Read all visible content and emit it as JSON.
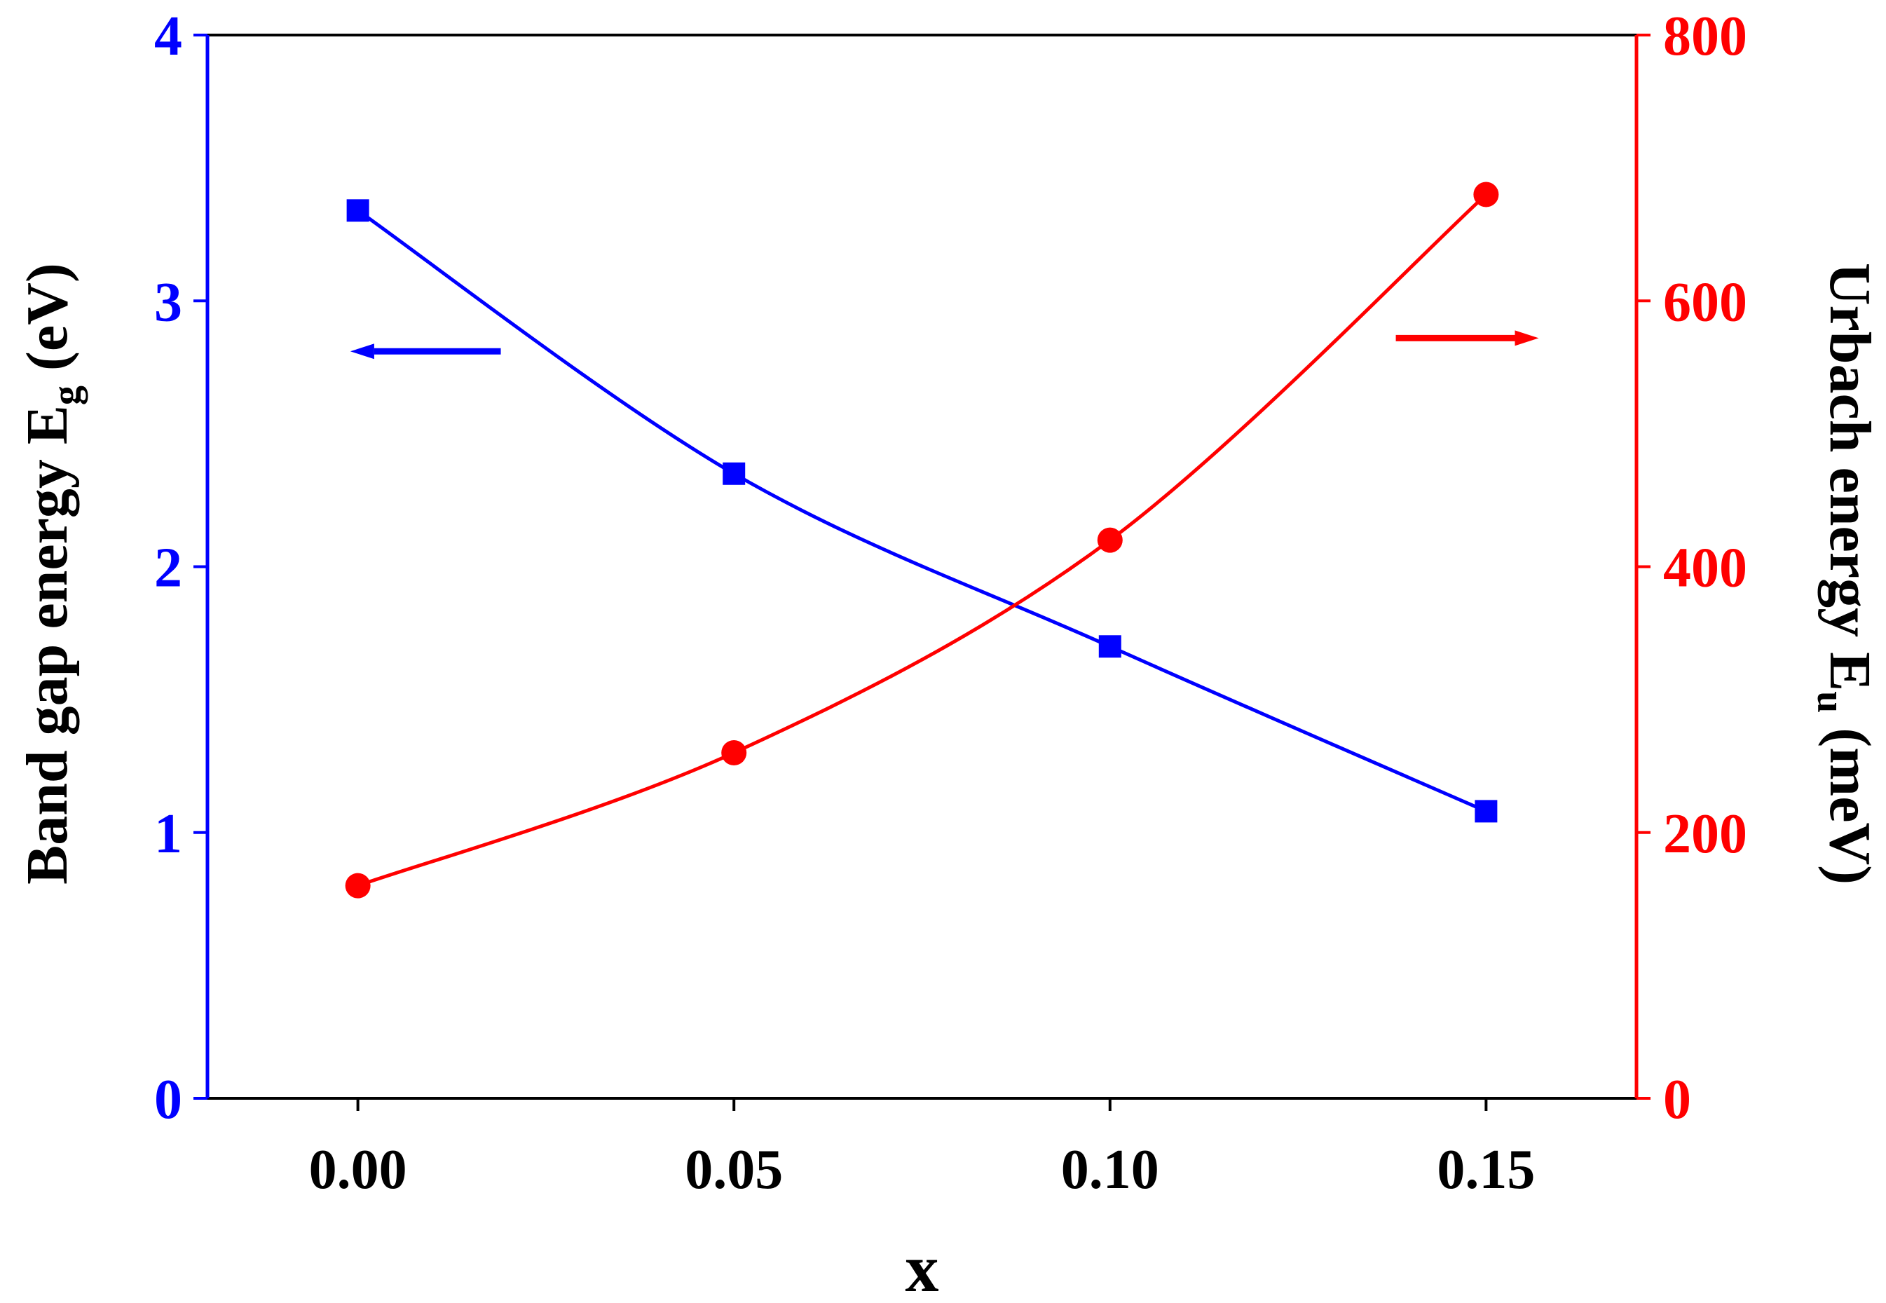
{
  "chart_data": {
    "type": "line",
    "xlabel": "x",
    "x": [
      0.0,
      0.05,
      0.1,
      0.15
    ],
    "xlim": [
      -0.02,
      0.17
    ],
    "xticks": [
      "0.00",
      "0.05",
      "0.10",
      "0.15"
    ],
    "y_left": {
      "label_main": "Band gap energy E",
      "label_sub": "g",
      "label_unit": " (eV)",
      "lim": [
        0,
        4
      ],
      "ticks": [
        "0",
        "1",
        "2",
        "3",
        "4"
      ],
      "color": "#0000ff"
    },
    "y_right": {
      "label_main": "Urbach energy E",
      "label_sub": "u",
      "label_unit": " (meV)",
      "lim": [
        0,
        800
      ],
      "ticks": [
        "0",
        "200",
        "400",
        "600",
        "800"
      ],
      "color": "#ff0000"
    },
    "series": [
      {
        "axis": "left",
        "color": "#0000ff",
        "marker": "square",
        "values": [
          3.34,
          2.35,
          1.7,
          1.08
        ]
      },
      {
        "axis": "right",
        "color": "#ff0000",
        "marker": "circle",
        "values": [
          160,
          260,
          420,
          680
        ]
      }
    ],
    "arrows": [
      {
        "direction": "left",
        "color": "#0000ff",
        "x_from": 0.019,
        "x_to": -0.001,
        "y_left": 2.81
      },
      {
        "direction": "right",
        "color": "#ff0000",
        "x_from": 0.138,
        "x_to": 0.157,
        "y_left": 2.86
      }
    ],
    "grid": false,
    "legend": "none"
  }
}
